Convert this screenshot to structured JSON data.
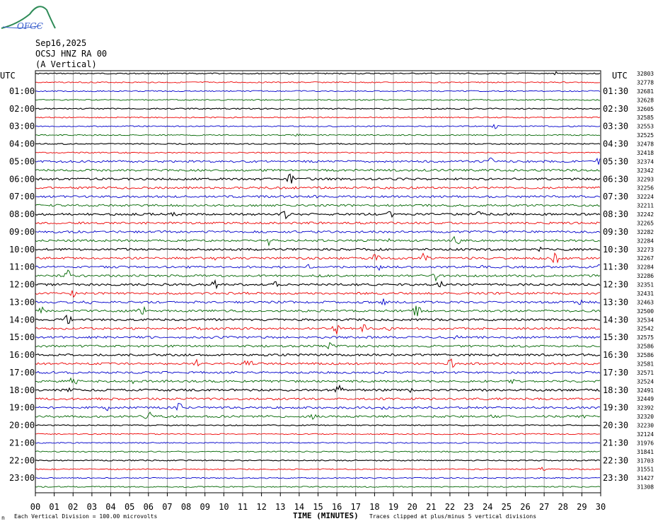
{
  "logo": {
    "text": "OFGC"
  },
  "header": {
    "date": "Sep16,2025",
    "station": "OCSJ HNZ RA 00",
    "component": "(A Vertical)"
  },
  "chart_data": {
    "type": "line",
    "title": "",
    "xlabel": "TIME (MINUTES)",
    "ylabel": "",
    "xlim": [
      0,
      30
    ],
    "x_ticks": [
      "00",
      "01",
      "02",
      "03",
      "04",
      "05",
      "06",
      "07",
      "08",
      "09",
      "10",
      "11",
      "12",
      "13",
      "14",
      "15",
      "16",
      "17",
      "18",
      "19",
      "20",
      "21",
      "22",
      "23",
      "24",
      "25",
      "26",
      "27",
      "28",
      "29",
      "30"
    ],
    "left_axis_label": "UTC",
    "right_axis_label": "UTC",
    "left_hour_labels": [
      "01:00",
      "02:00",
      "03:00",
      "04:00",
      "05:00",
      "06:00",
      "07:00",
      "08:00",
      "09:00",
      "10:00",
      "11:00",
      "12:00",
      "13:00",
      "14:00",
      "15:00",
      "16:00",
      "17:00",
      "18:00",
      "19:00",
      "20:00",
      "21:00",
      "22:00",
      "23:00"
    ],
    "right_hour_labels": [
      "01:30",
      "02:30",
      "03:30",
      "04:30",
      "05:30",
      "06:30",
      "07:30",
      "08:30",
      "09:30",
      "10:30",
      "11:30",
      "12:30",
      "13:30",
      "14:30",
      "15:30",
      "16:30",
      "17:30",
      "18:30",
      "19:30",
      "20:30",
      "21:30",
      "22:30",
      "23:30"
    ],
    "trace_colors": [
      "#000000",
      "#ee0000",
      "#0000cc",
      "#006600"
    ],
    "traces_per_hour": 2,
    "trace_count": 48,
    "grid": true,
    "right_counts": [
      "32803",
      "32778",
      "32681",
      "32628",
      "32605",
      "32585",
      "32553",
      "32525",
      "32478",
      "32418",
      "32374",
      "32342",
      "32293",
      "32256",
      "32224",
      "32211",
      "32242",
      "32265",
      "32282",
      "32284",
      "32273",
      "32267",
      "32284",
      "32286",
      "32351",
      "32431",
      "32463",
      "32500",
      "32534",
      "32542",
      "32575",
      "32586",
      "32586",
      "32581",
      "32571",
      "32524",
      "32491",
      "32449",
      "32392",
      "32320",
      "32230",
      "32124",
      "31976",
      "31841",
      "31703",
      "31551",
      "31427",
      "31308"
    ],
    "scale_note": "Each Vertical Division =  100.00 microvolts",
    "clip_note": "Traces clipped at plus/minus 5 vertical divisions",
    "small_mark": "n"
  }
}
